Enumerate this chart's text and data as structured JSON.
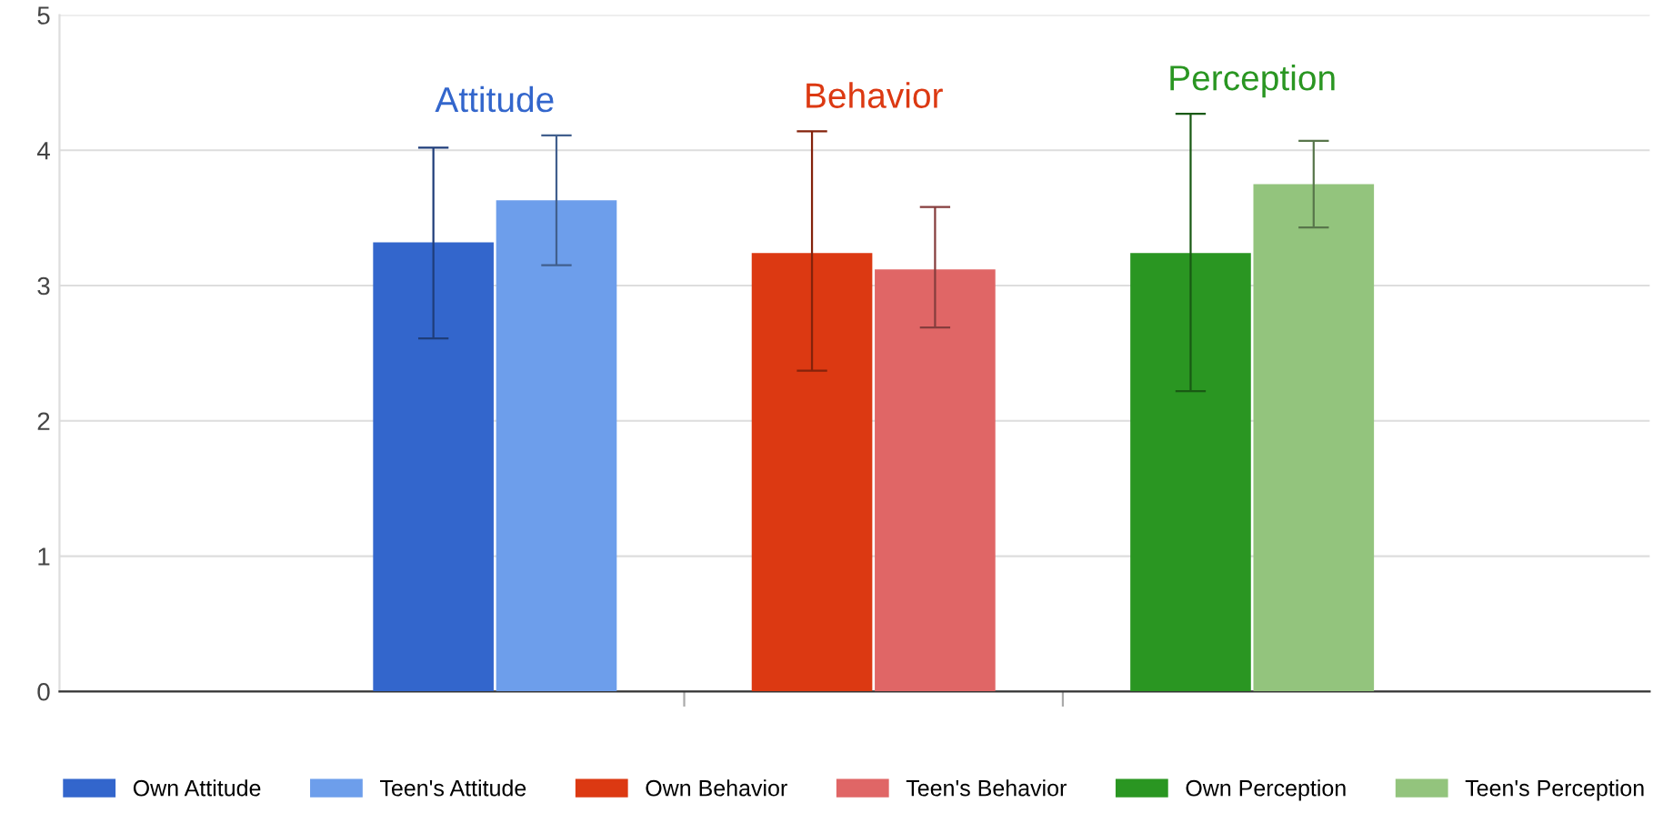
{
  "chart_data": {
    "type": "bar",
    "categories": [
      null,
      null,
      null
    ],
    "series": [
      {
        "name": "Own Attitude",
        "color": "#3366cc",
        "values": [
          3.32,
          null,
          null
        ],
        "errors": [
          [
            2.61,
            4.02
          ],
          null,
          null
        ]
      },
      {
        "name": "Teen's Attitude",
        "color": "#6d9eeb",
        "values": [
          3.63,
          null,
          null
        ],
        "errors": [
          [
            3.15,
            4.11
          ],
          null,
          null
        ]
      },
      {
        "name": "Own Behavior",
        "color": "#dc3912",
        "values": [
          null,
          3.24,
          null
        ],
        "errors": [
          null,
          [
            2.37,
            4.14
          ],
          null
        ]
      },
      {
        "name": "Teen's Behavior",
        "color": "#e06666",
        "values": [
          null,
          3.12,
          null
        ],
        "errors": [
          null,
          [
            2.69,
            3.58
          ],
          null
        ]
      },
      {
        "name": "Own Perception",
        "color": "#2a9622",
        "values": [
          null,
          null,
          3.24
        ],
        "errors": [
          null,
          null,
          [
            2.22,
            4.27
          ]
        ]
      },
      {
        "name": "Teen's Perception",
        "color": "#93c47d",
        "values": [
          null,
          null,
          3.75
        ],
        "errors": [
          null,
          null,
          [
            3.43,
            4.07
          ]
        ]
      }
    ],
    "annotations": [
      "Attitude",
      "Behavior",
      "Perception"
    ],
    "ylim": [
      0,
      5
    ],
    "yticks": [
      0,
      1,
      2,
      3,
      4,
      5
    ],
    "grid": "y",
    "legend": "bottom"
  }
}
